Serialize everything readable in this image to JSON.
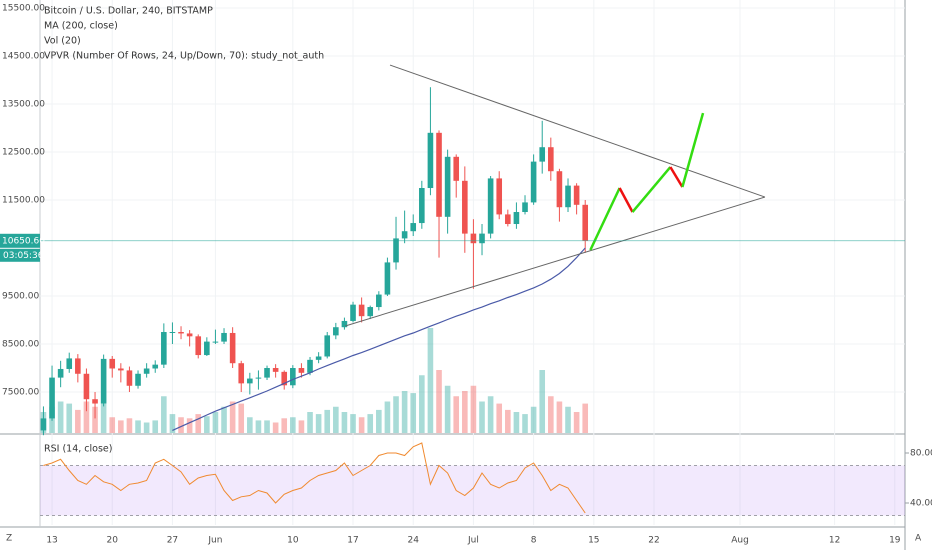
{
  "chart_data": {
    "type": "candlestick",
    "title": "Bitcoin / U.S. Dollar, 240, BITSTAMP",
    "indicators": [
      "MA (200, close)",
      "Vol (20)",
      "VPVR (Number Of Rows, 24, Up/Down, 70): study_not_auth"
    ],
    "xlim": [
      -1.4,
      99.186
    ],
    "xticks": [
      {
        "value": 0,
        "label": "13"
      },
      {
        "value": 7,
        "label": "20"
      },
      {
        "value": 14,
        "label": "27"
      },
      {
        "value": 19,
        "label": "Jun"
      },
      {
        "value": 28,
        "label": "10"
      },
      {
        "value": 35,
        "label": "17"
      },
      {
        "value": 42,
        "label": "24"
      },
      {
        "value": 49,
        "label": "Jul"
      },
      {
        "value": 56,
        "label": "8"
      },
      {
        "value": 63,
        "label": "15"
      },
      {
        "value": 70,
        "label": "22"
      },
      {
        "value": 80,
        "label": "Aug"
      },
      {
        "value": 91,
        "label": "12"
      },
      {
        "value": 98,
        "label": "19"
      }
    ],
    "ylim": [
      6646,
      15667
    ],
    "yticks": [
      {
        "value": 7500,
        "label": "7500.00"
      },
      {
        "value": 8500,
        "label": "8500.00"
      },
      {
        "value": 9500,
        "label": "9500.00"
      },
      {
        "value": 11500,
        "label": "11500.00"
      },
      {
        "value": 12500,
        "label": "12500.00"
      },
      {
        "value": 13500,
        "label": "13500.00"
      },
      {
        "value": 14500,
        "label": "14500.00"
      },
      {
        "value": 15500,
        "label": "15500.00"
      }
    ],
    "grid": true,
    "up_color": "#26a69a",
    "down_color": "#ef5350",
    "x": [
      -1,
      0,
      1,
      2,
      3,
      4,
      5,
      6,
      7,
      8,
      9,
      10,
      11,
      12,
      13,
      14,
      15,
      16,
      17,
      18,
      19,
      20,
      21,
      22,
      23,
      24,
      25,
      26,
      27,
      28,
      29,
      30,
      31,
      32,
      33,
      34,
      35,
      36,
      37,
      38,
      39,
      40,
      41,
      42,
      43,
      44,
      45,
      46,
      47,
      48,
      49,
      50,
      51,
      52,
      53,
      54,
      55,
      56,
      57,
      58,
      59,
      60,
      61,
      62
    ],
    "open": [
      6700,
      6950,
      7800,
      7980,
      8200,
      7880,
      7350,
      7260,
      8190,
      7990,
      7950,
      7630,
      7880,
      7990,
      8070,
      8750,
      8750,
      8720,
      8660,
      8270,
      8550,
      8550,
      8730,
      8100,
      7680,
      7780,
      7800,
      8000,
      7920,
      7640,
      8000,
      7900,
      8170,
      8240,
      8680,
      8850,
      8980,
      9320,
      9080,
      9270,
      9530,
      10200,
      10700,
      10850,
      11020,
      11750,
      12900,
      11150,
      12400,
      11900,
      10800,
      10600,
      10800,
      11950,
      11200,
      11000,
      11250,
      11450,
      12300,
      12600,
      12100,
      11350,
      11800,
      11400
    ],
    "high": [
      7200,
      8050,
      8150,
      8320,
      8290,
      7990,
      7500,
      8280,
      8250,
      8100,
      8030,
      7950,
      8100,
      8160,
      8930,
      8950,
      8870,
      8790,
      8700,
      8640,
      8800,
      8830,
      8850,
      8150,
      7900,
      7950,
      8050,
      8080,
      7950,
      8060,
      8100,
      8230,
      8330,
      8750,
      8940,
      9050,
      9380,
      9470,
      9300,
      9600,
      10300,
      11150,
      11280,
      11200,
      11900,
      13850,
      12950,
      12550,
      12450,
      12200,
      11100,
      11000,
      12000,
      12100,
      11300,
      11450,
      11600,
      12450,
      13150,
      12800,
      12150,
      11950,
      11850,
      11500
    ],
    "low": [
      6600,
      6900,
      7600,
      7900,
      7700,
      7100,
      6950,
      7200,
      7800,
      7700,
      7500,
      7570,
      7800,
      7900,
      8000,
      8500,
      8600,
      8450,
      8200,
      8250,
      8500,
      8500,
      8000,
      7500,
      7450,
      7550,
      7750,
      7800,
      7550,
      7580,
      7800,
      7850,
      8100,
      8200,
      8600,
      8800,
      8950,
      8950,
      9020,
      9200,
      9500,
      10050,
      10600,
      10750,
      10900,
      11600,
      10300,
      10800,
      11550,
      10400,
      9650,
      10350,
      10700,
      11100,
      10950,
      10900,
      11200,
      11400,
      12050,
      11900,
      11050,
      11250,
      11200,
      10400
    ],
    "close": [
      6950,
      7800,
      7980,
      8200,
      7880,
      7350,
      7260,
      8190,
      7990,
      7950,
      7630,
      7880,
      7990,
      8070,
      8750,
      8750,
      8720,
      8660,
      8270,
      8550,
      8550,
      8730,
      8100,
      7680,
      7780,
      7800,
      8000,
      7920,
      7640,
      8000,
      7900,
      8170,
      8240,
      8680,
      8850,
      8980,
      9320,
      9080,
      9270,
      9530,
      10200,
      10700,
      10850,
      11020,
      11750,
      12900,
      11150,
      12400,
      11900,
      10800,
      10600,
      10800,
      11950,
      11200,
      11000,
      11250,
      11450,
      12300,
      12600,
      12100,
      11350,
      11800,
      11400,
      10650
    ],
    "volume_lim": [
      0,
      100
    ],
    "volume": [
      20,
      25,
      30,
      28,
      22,
      30,
      25,
      28,
      15,
      12,
      14,
      12,
      10,
      12,
      35,
      18,
      15,
      14,
      18,
      16,
      20,
      25,
      30,
      28,
      15,
      12,
      12,
      10,
      14,
      15,
      12,
      20,
      18,
      22,
      25,
      20,
      18,
      15,
      18,
      22,
      30,
      35,
      40,
      38,
      55,
      100,
      60,
      45,
      35,
      40,
      45,
      30,
      35,
      28,
      22,
      20,
      18,
      25,
      60,
      35,
      30,
      25,
      20,
      28
    ],
    "ma": {
      "color": "#4a5aa8",
      "values": [
        null,
        null,
        null,
        null,
        null,
        null,
        null,
        null,
        null,
        null,
        null,
        null,
        null,
        null,
        null,
        6700,
        6780,
        6860,
        6940,
        7020,
        7100,
        7170,
        7240,
        7310,
        7380,
        7450,
        7520,
        7600,
        7680,
        7760,
        7830,
        7900,
        7980,
        8050,
        8120,
        8190,
        8260,
        8320,
        8390,
        8460,
        8530,
        8600,
        8670,
        8730,
        8800,
        8870,
        8940,
        9010,
        9080,
        9140,
        9210,
        9270,
        9340,
        9400,
        9470,
        9530,
        9600,
        9670,
        9750,
        9850,
        9970,
        10120,
        10300,
        10500
      ]
    },
    "last_price": {
      "value": 10650.6,
      "label": "10650.60"
    },
    "countdown": "03:05:36",
    "trendlines": [
      {
        "color": "#666666",
        "points": [
          [
            39.3,
            14312
          ],
          [
            82.9,
            11562
          ]
        ]
      },
      {
        "color": "#666666",
        "points": [
          [
            34.1,
            8875
          ],
          [
            82.9,
            11562
          ]
        ]
      }
    ],
    "projection": [
      {
        "color": "#33dd11",
        "x": [
          62.6,
          66
        ],
        "y": [
          10458,
          11750
        ]
      },
      {
        "color": "#ee1111",
        "x": [
          66,
          67.5
        ],
        "y": [
          11750,
          11250
        ]
      },
      {
        "color": "#33dd11",
        "x": [
          67.5,
          71.9
        ],
        "y": [
          11250,
          12187
        ]
      },
      {
        "color": "#ee1111",
        "x": [
          71.9,
          73.3
        ],
        "y": [
          12187,
          11771
        ]
      },
      {
        "color": "#33dd11",
        "x": [
          73.3,
          75.7
        ],
        "y": [
          11771,
          13312
        ]
      }
    ],
    "rsi": {
      "title": "RSI (14, close)",
      "color": "#f08a30",
      "ylim": [
        22.4,
        92.8
      ],
      "yticks": [
        {
          "value": 80,
          "label": "80.00"
        },
        {
          "value": 40,
          "label": "40.00"
        }
      ],
      "bands": [
        70,
        30
      ],
      "values": [
        70,
        72,
        75,
        66,
        58,
        55,
        62,
        57,
        55,
        50,
        55,
        56,
        58,
        72,
        75,
        70,
        65,
        55,
        60,
        62,
        63,
        50,
        42,
        45,
        46,
        50,
        48,
        40,
        47,
        50,
        52,
        58,
        62,
        64,
        66,
        72,
        62,
        66,
        70,
        78,
        80,
        80,
        78,
        85,
        88,
        55,
        70,
        64,
        50,
        46,
        52,
        64,
        55,
        52,
        56,
        58,
        68,
        72,
        62,
        50,
        55,
        52,
        42,
        32
      ]
    },
    "buttons": [
      "Z",
      "A"
    ]
  }
}
